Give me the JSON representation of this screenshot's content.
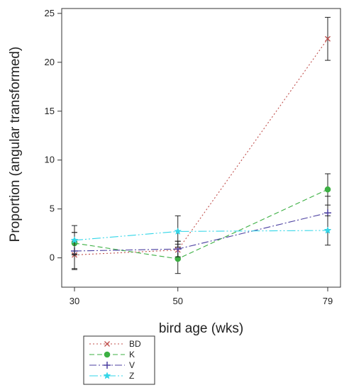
{
  "chart_data": {
    "type": "line",
    "title": "",
    "xlabel": "bird age (wks)",
    "ylabel": "Proportion (angular transformed)",
    "x": [
      30,
      50,
      79
    ],
    "xticks": [
      "30",
      "50",
      "79"
    ],
    "yticks": [
      0,
      5,
      10,
      15,
      20,
      25
    ],
    "ylim": [
      -3,
      25.5
    ],
    "grid": false,
    "legend_position": "bottom-left, below plot",
    "series": [
      {
        "name": "BD",
        "values": [
          0.3,
          0.8,
          22.4
        ],
        "errors": [
          1.4,
          0.9,
          2.2
        ],
        "color": "#c0504d",
        "marker": "x",
        "dash": "2,3"
      },
      {
        "name": "K",
        "values": [
          1.5,
          -0.1,
          7.0
        ],
        "errors": [
          1.1,
          1.5,
          1.6
        ],
        "color": "#3cb043",
        "marker": "circle",
        "dash": "7,4"
      },
      {
        "name": "V",
        "values": [
          0.7,
          0.9,
          4.6
        ],
        "errors": [
          1.9,
          0.8,
          1.7
        ],
        "color": "#4b3fa0",
        "marker": "plus",
        "dash": "10,3,2,3"
      },
      {
        "name": "Z",
        "values": [
          1.8,
          2.7,
          2.8
        ],
        "errors": [
          1.5,
          1.6,
          1.5
        ],
        "color": "#33d6e8",
        "marker": "star",
        "dash": "12,3,2,3,2,3"
      }
    ]
  }
}
